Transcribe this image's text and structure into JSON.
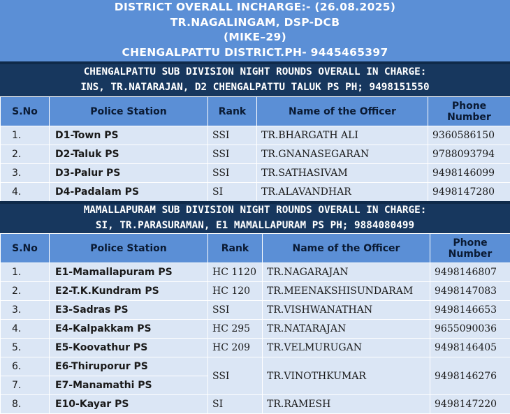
{
  "header": {
    "line1": "DISTRICT OVERALL INCHARGE:- (26.08.2025)",
    "line2": "TR.NAGALINGAM, DSP-DCB",
    "line3": "(MIKE–29)",
    "line4": "CHENGALPATTU DISTRICT.PH- 9445465397"
  },
  "columns": {
    "sno": "S.No",
    "station": "Police Station",
    "rank": "Rank",
    "officer": "Name of the Officer",
    "phone_l1": "Phone",
    "phone_l2": "Number"
  },
  "section1": {
    "title_l1": "CHENGALPATTU SUB DIVISION NIGHT ROUNDS OVERALL IN CHARGE:",
    "title_l2": "INS, TR.NATARAJAN, D2 CHENGALPATTU TALUK PS PH; 9498151550",
    "rows": [
      {
        "sno": "1.",
        "station": "D1-Town PS",
        "rank": "SSI",
        "officer": "TR.BHARGATH ALI",
        "phone": "9360586150"
      },
      {
        "sno": "2.",
        "station": "D2-Taluk PS",
        "rank": "SSI",
        "officer": "TR.GNANASEGARAN",
        "phone": "9788093794"
      },
      {
        "sno": "3.",
        "station": "D3-Palur PS",
        "rank": "SSI",
        "officer": "TR.SATHASIVAM",
        "phone": "9498146099"
      },
      {
        "sno": "4.",
        "station": "D4-Padalam PS",
        "rank": "SI",
        "officer": "TR.ALAVANDHAR",
        "phone": "9498147280"
      }
    ]
  },
  "section2": {
    "title_l1": "MAMALLAPURAM SUB DIVISION NIGHT ROUNDS OVERALL IN CHARGE:",
    "title_l2": "SI, TR.PARASURAMAN, E1 MAMALLAPURAM PS PH; 9884080499",
    "rows": [
      {
        "sno": "1.",
        "station": "E1-Mamallapuram PS",
        "rank": "HC 1120",
        "officer": "TR.NAGARAJAN",
        "phone": "9498146807"
      },
      {
        "sno": "2.",
        "station": "E2-T.K.Kundram PS",
        "rank": "HC 120",
        "officer": "TR.MEENAKSHISUNDARAM",
        "phone": "9498147083"
      },
      {
        "sno": "3.",
        "station": "E3-Sadras PS",
        "rank": "SSI",
        "officer": "TR.VISHWANATHAN",
        "phone": "9498146653"
      },
      {
        "sno": "4.",
        "station": "E4-Kalpakkam PS",
        "rank": "HC 295",
        "officer": "TR.NATARAJAN",
        "phone": "9655090036"
      },
      {
        "sno": "5.",
        "station": "E5-Koovathur PS",
        "rank": "HC 209",
        "officer": "TR.VELMURUGAN",
        "phone": "9498146405"
      }
    ],
    "merged": {
      "sno_a": "6.",
      "station_a": "E6-Thiruporur PS",
      "sno_b": "7.",
      "station_b": "E7-Manamathi PS",
      "rank": "SSI",
      "officer": "TR.VINOTHKUMAR",
      "phone": "9498146276"
    },
    "last": {
      "sno": "8.",
      "station": "E10-Kayar PS",
      "rank": "SI",
      "officer": "TR.RAMESH",
      "phone": "9498147220"
    }
  }
}
